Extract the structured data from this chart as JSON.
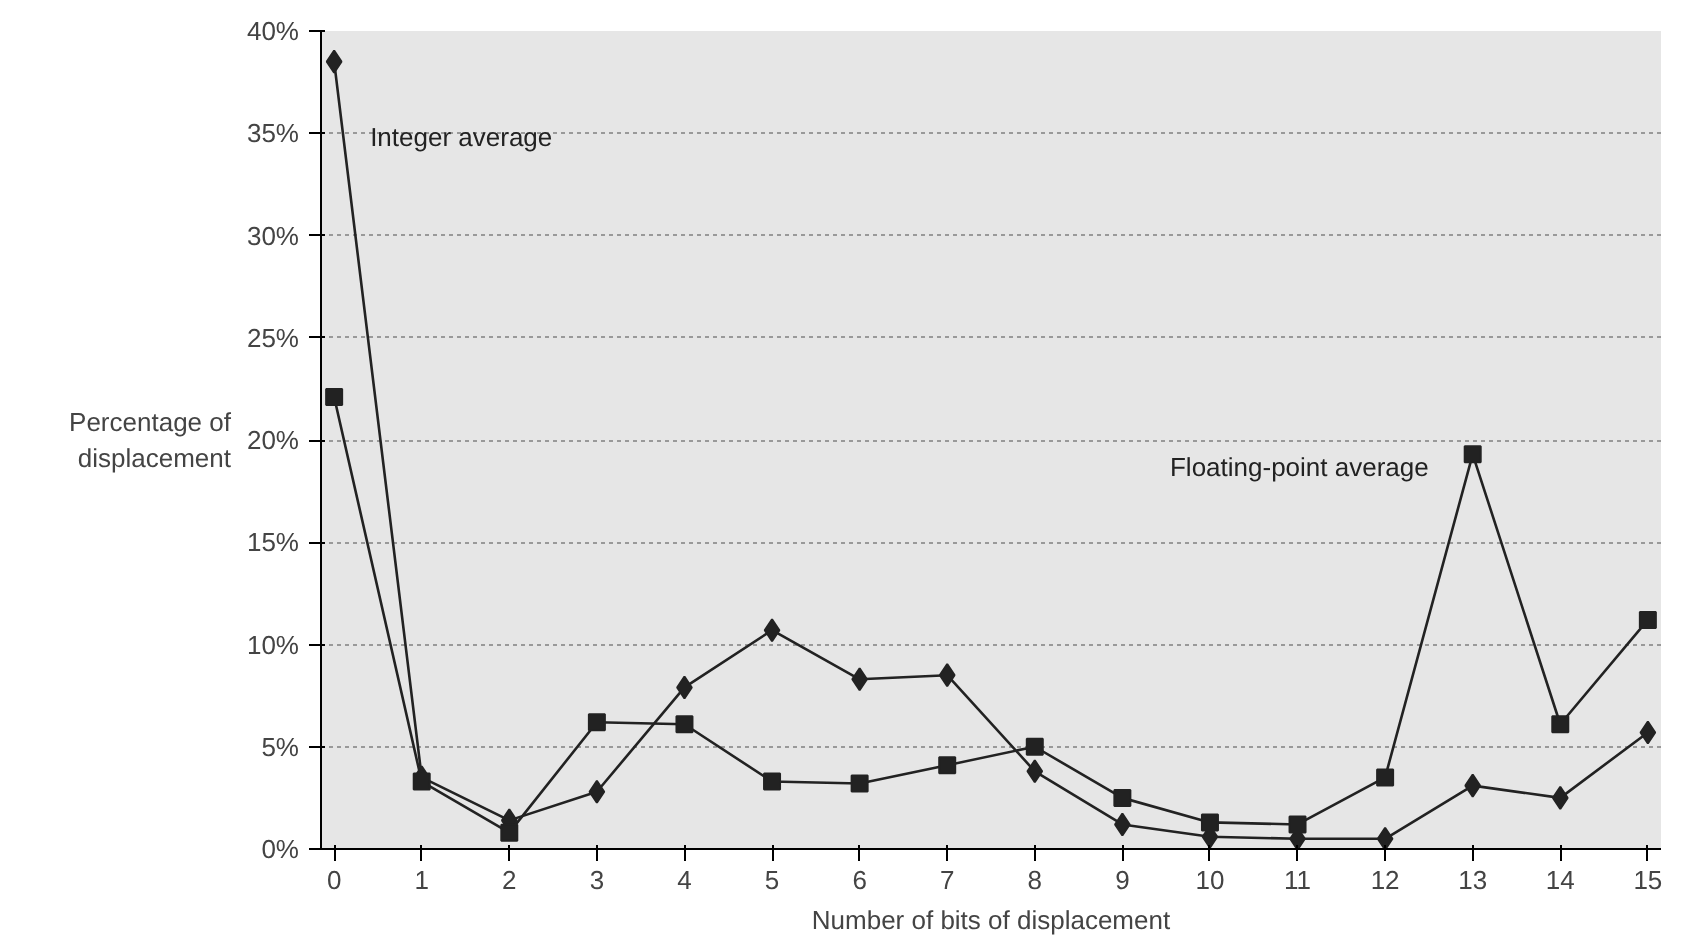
{
  "chart_data": {
    "type": "line",
    "xlabel": "Number of bits of displacement",
    "ylabel": "Percentage of\ndisplacement",
    "x": [
      0,
      1,
      2,
      3,
      4,
      5,
      6,
      7,
      8,
      9,
      10,
      11,
      12,
      13,
      14,
      15
    ],
    "series": [
      {
        "name": "Integer average",
        "color": "#222222",
        "marker": "diamond",
        "values": [
          38.5,
          3.5,
          1.4,
          2.8,
          7.9,
          10.7,
          8.3,
          8.5,
          3.8,
          1.2,
          0.6,
          0.5,
          0.5,
          3.1,
          2.5,
          5.7
        ]
      },
      {
        "name": "Floating-point average",
        "color": "#222222",
        "marker": "square",
        "values": [
          22.1,
          3.3,
          0.8,
          6.2,
          6.1,
          3.3,
          3.2,
          4.1,
          5.0,
          2.5,
          1.3,
          1.2,
          3.5,
          19.3,
          6.1,
          11.2
        ]
      }
    ],
    "xlim": [
      -0.15,
      15.15
    ],
    "xticks": [
      0,
      1,
      2,
      3,
      4,
      5,
      6,
      7,
      8,
      9,
      10,
      11,
      12,
      13,
      14,
      15
    ],
    "ylim": [
      0,
      40
    ],
    "yticks": [
      {
        "value": 0,
        "label": "0%"
      },
      {
        "value": 5,
        "label": "5%"
      },
      {
        "value": 10,
        "label": "10%"
      },
      {
        "value": 15,
        "label": "15%"
      },
      {
        "value": 20,
        "label": "20%"
      },
      {
        "value": 25,
        "label": "25%"
      },
      {
        "value": 30,
        "label": "30%"
      },
      {
        "value": 35,
        "label": "35%"
      },
      {
        "value": 40,
        "label": "40%"
      }
    ],
    "grid": "y",
    "line_style": "solid"
  }
}
